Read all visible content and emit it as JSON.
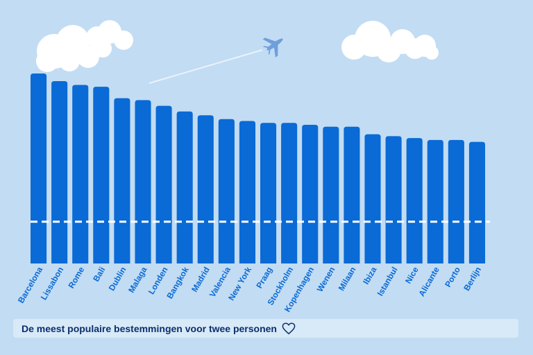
{
  "caption": {
    "text": "De meest populaire bestemmingen voor twee personen",
    "icon": "heart-icon"
  },
  "colors": {
    "background": "#c2dcf3",
    "bar": "#0a6ad6",
    "reference_line": "#ffffff",
    "caption_text": "#0b2f6b"
  },
  "decorations": [
    "cloud",
    "cloud",
    "airplane-icon"
  ],
  "chart_data": {
    "type": "bar",
    "categories": [
      "Barcelona",
      "Lissabon",
      "Rome",
      "Bali",
      "Dublin",
      "Malaga",
      "Londen",
      "Bangkok",
      "Madrid",
      "Valencia",
      "New York",
      "Praag",
      "Stockholm",
      "Kopenhagen",
      "Wenen",
      "Milaan",
      "Ibiza",
      "Istanbul",
      "Nice",
      "Alicante",
      "Porto",
      "Berlijn"
    ],
    "values": [
      100,
      96,
      94,
      93,
      87,
      86,
      83,
      80,
      78,
      76,
      75,
      74,
      74,
      73,
      72,
      72,
      68,
      67,
      66,
      65,
      65,
      64
    ],
    "reference_line": 22,
    "ylim": [
      0,
      100
    ],
    "grid": false,
    "legend": "none",
    "x_tick_rotation": "diagonal",
    "title": "",
    "xlabel": "",
    "ylabel": ""
  }
}
